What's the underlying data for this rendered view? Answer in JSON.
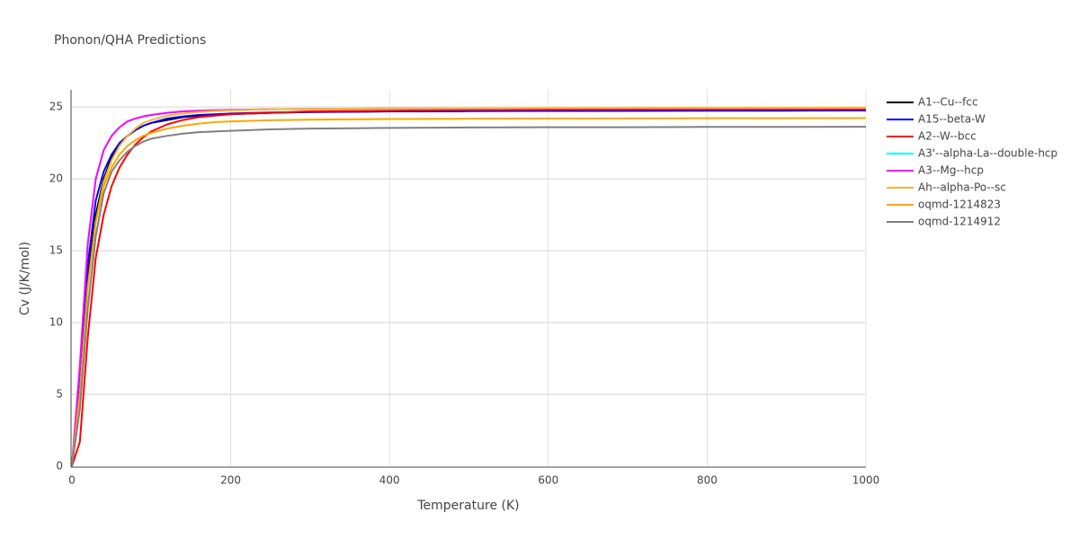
{
  "chart_data": {
    "type": "line",
    "title": "Phonon/QHA Predictions",
    "x_label": "Temperature (K)",
    "y_label": "Cv (J/K/mol)",
    "x": [
      0,
      10,
      20,
      30,
      40,
      50,
      60,
      70,
      80,
      90,
      100,
      120,
      140,
      160,
      180,
      200,
      250,
      300,
      400,
      500,
      600,
      700,
      800,
      900,
      1000
    ],
    "xlim": [
      0,
      1000
    ],
    "xticks": [
      0,
      200,
      400,
      600,
      800,
      1000
    ],
    "ylim": [
      0,
      26.2
    ],
    "yticks": [
      0,
      5,
      10,
      15,
      20,
      25
    ],
    "grid": true,
    "series": [
      {
        "name": "A1--Cu--fcc",
        "color": "#000000",
        "values": [
          0,
          5,
          13,
          17.5,
          20,
          21.5,
          22.4,
          23,
          23.4,
          23.7,
          23.9,
          24.1,
          24.3,
          24.4,
          24.45,
          24.5,
          24.6,
          24.65,
          24.7,
          24.72,
          24.74,
          24.75,
          24.76,
          24.76,
          24.77
        ]
      },
      {
        "name": "A15--beta-W",
        "color": "#0000ff",
        "values": [
          0,
          6,
          14,
          18.5,
          20.5,
          21.7,
          22.5,
          23,
          23.4,
          23.7,
          23.9,
          24.2,
          24.35,
          24.45,
          24.5,
          24.55,
          24.62,
          24.66,
          24.7,
          24.72,
          24.73,
          24.74,
          24.75,
          24.75,
          24.76
        ]
      },
      {
        "name": "A2--W--bcc",
        "color": "#ff0000",
        "values": [
          0,
          1.7,
          9,
          14.5,
          17.5,
          19.5,
          20.8,
          21.7,
          22.4,
          22.9,
          23.3,
          23.8,
          24.1,
          24.3,
          24.4,
          24.5,
          24.6,
          24.7,
          24.75,
          24.8,
          24.82,
          24.83,
          24.84,
          24.85,
          24.85
        ]
      },
      {
        "name": "A3'--alpha-La--double-hcp",
        "color": "#00ffff",
        "values": [
          0,
          7,
          15.5,
          20,
          22,
          23,
          23.6,
          24,
          24.2,
          24.35,
          24.45,
          24.6,
          24.7,
          24.75,
          24.78,
          24.8,
          24.85,
          24.87,
          24.9,
          24.9,
          24.92,
          24.92,
          24.93,
          24.93,
          24.94
        ]
      },
      {
        "name": "A3--Mg--hcp",
        "color": "#ff00ff",
        "values": [
          0,
          7,
          15.5,
          20,
          22,
          23,
          23.6,
          24,
          24.2,
          24.35,
          24.45,
          24.6,
          24.7,
          24.75,
          24.78,
          24.8,
          24.85,
          24.87,
          24.9,
          24.9,
          24.92,
          24.92,
          24.93,
          24.93,
          24.94
        ]
      },
      {
        "name": "Ah--alpha-Po--sc",
        "color": "#f5b82e",
        "values": [
          0,
          5,
          12.5,
          17,
          19.8,
          21.3,
          22.3,
          23,
          23.5,
          23.9,
          24.1,
          24.4,
          24.55,
          24.65,
          24.72,
          24.77,
          24.85,
          24.88,
          24.9,
          24.92,
          24.93,
          24.94,
          24.95,
          24.95,
          24.96
        ]
      },
      {
        "name": "oqmd-1214823",
        "color": "#ffa500",
        "values": [
          0,
          5,
          12.5,
          17,
          19.5,
          20.8,
          21.7,
          22.3,
          22.7,
          23,
          23.2,
          23.5,
          23.7,
          23.85,
          23.95,
          24,
          24.08,
          24.12,
          24.17,
          24.19,
          24.2,
          24.21,
          24.22,
          24.22,
          24.23
        ]
      },
      {
        "name": "oqmd-1214912",
        "color": "#808080",
        "values": [
          0,
          4,
          11,
          16,
          19,
          20.5,
          21.3,
          21.9,
          22.3,
          22.6,
          22.8,
          23,
          23.15,
          23.25,
          23.3,
          23.35,
          23.45,
          23.5,
          23.55,
          23.58,
          23.6,
          23.6,
          23.62,
          23.62,
          23.63
        ]
      }
    ]
  }
}
